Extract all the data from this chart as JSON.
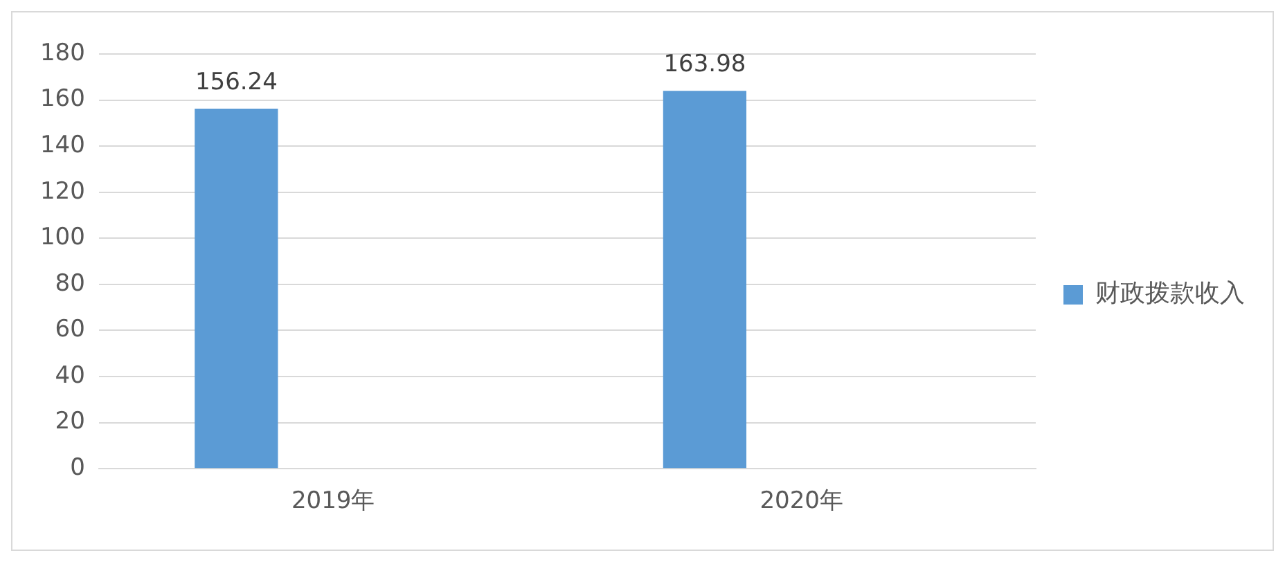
{
  "chart_data": {
    "type": "bar",
    "categories": [
      "2019年",
      "2020年"
    ],
    "series": [
      {
        "name": "财政拨款收入",
        "color": "#5b9bd5",
        "values": [
          156.24,
          163.98
        ],
        "value_labels": [
          "156.24",
          "163.98"
        ]
      },
      {
        "color": "#ed7d31",
        "values": [
          null,
          null
        ]
      },
      {
        "color": "#a5a5a5",
        "values": [
          null,
          null
        ]
      }
    ],
    "ylim": [
      0,
      180
    ],
    "yticks": [
      0,
      20,
      40,
      60,
      80,
      100,
      120,
      140,
      160,
      180
    ],
    "grid": "y",
    "legend": "right"
  }
}
